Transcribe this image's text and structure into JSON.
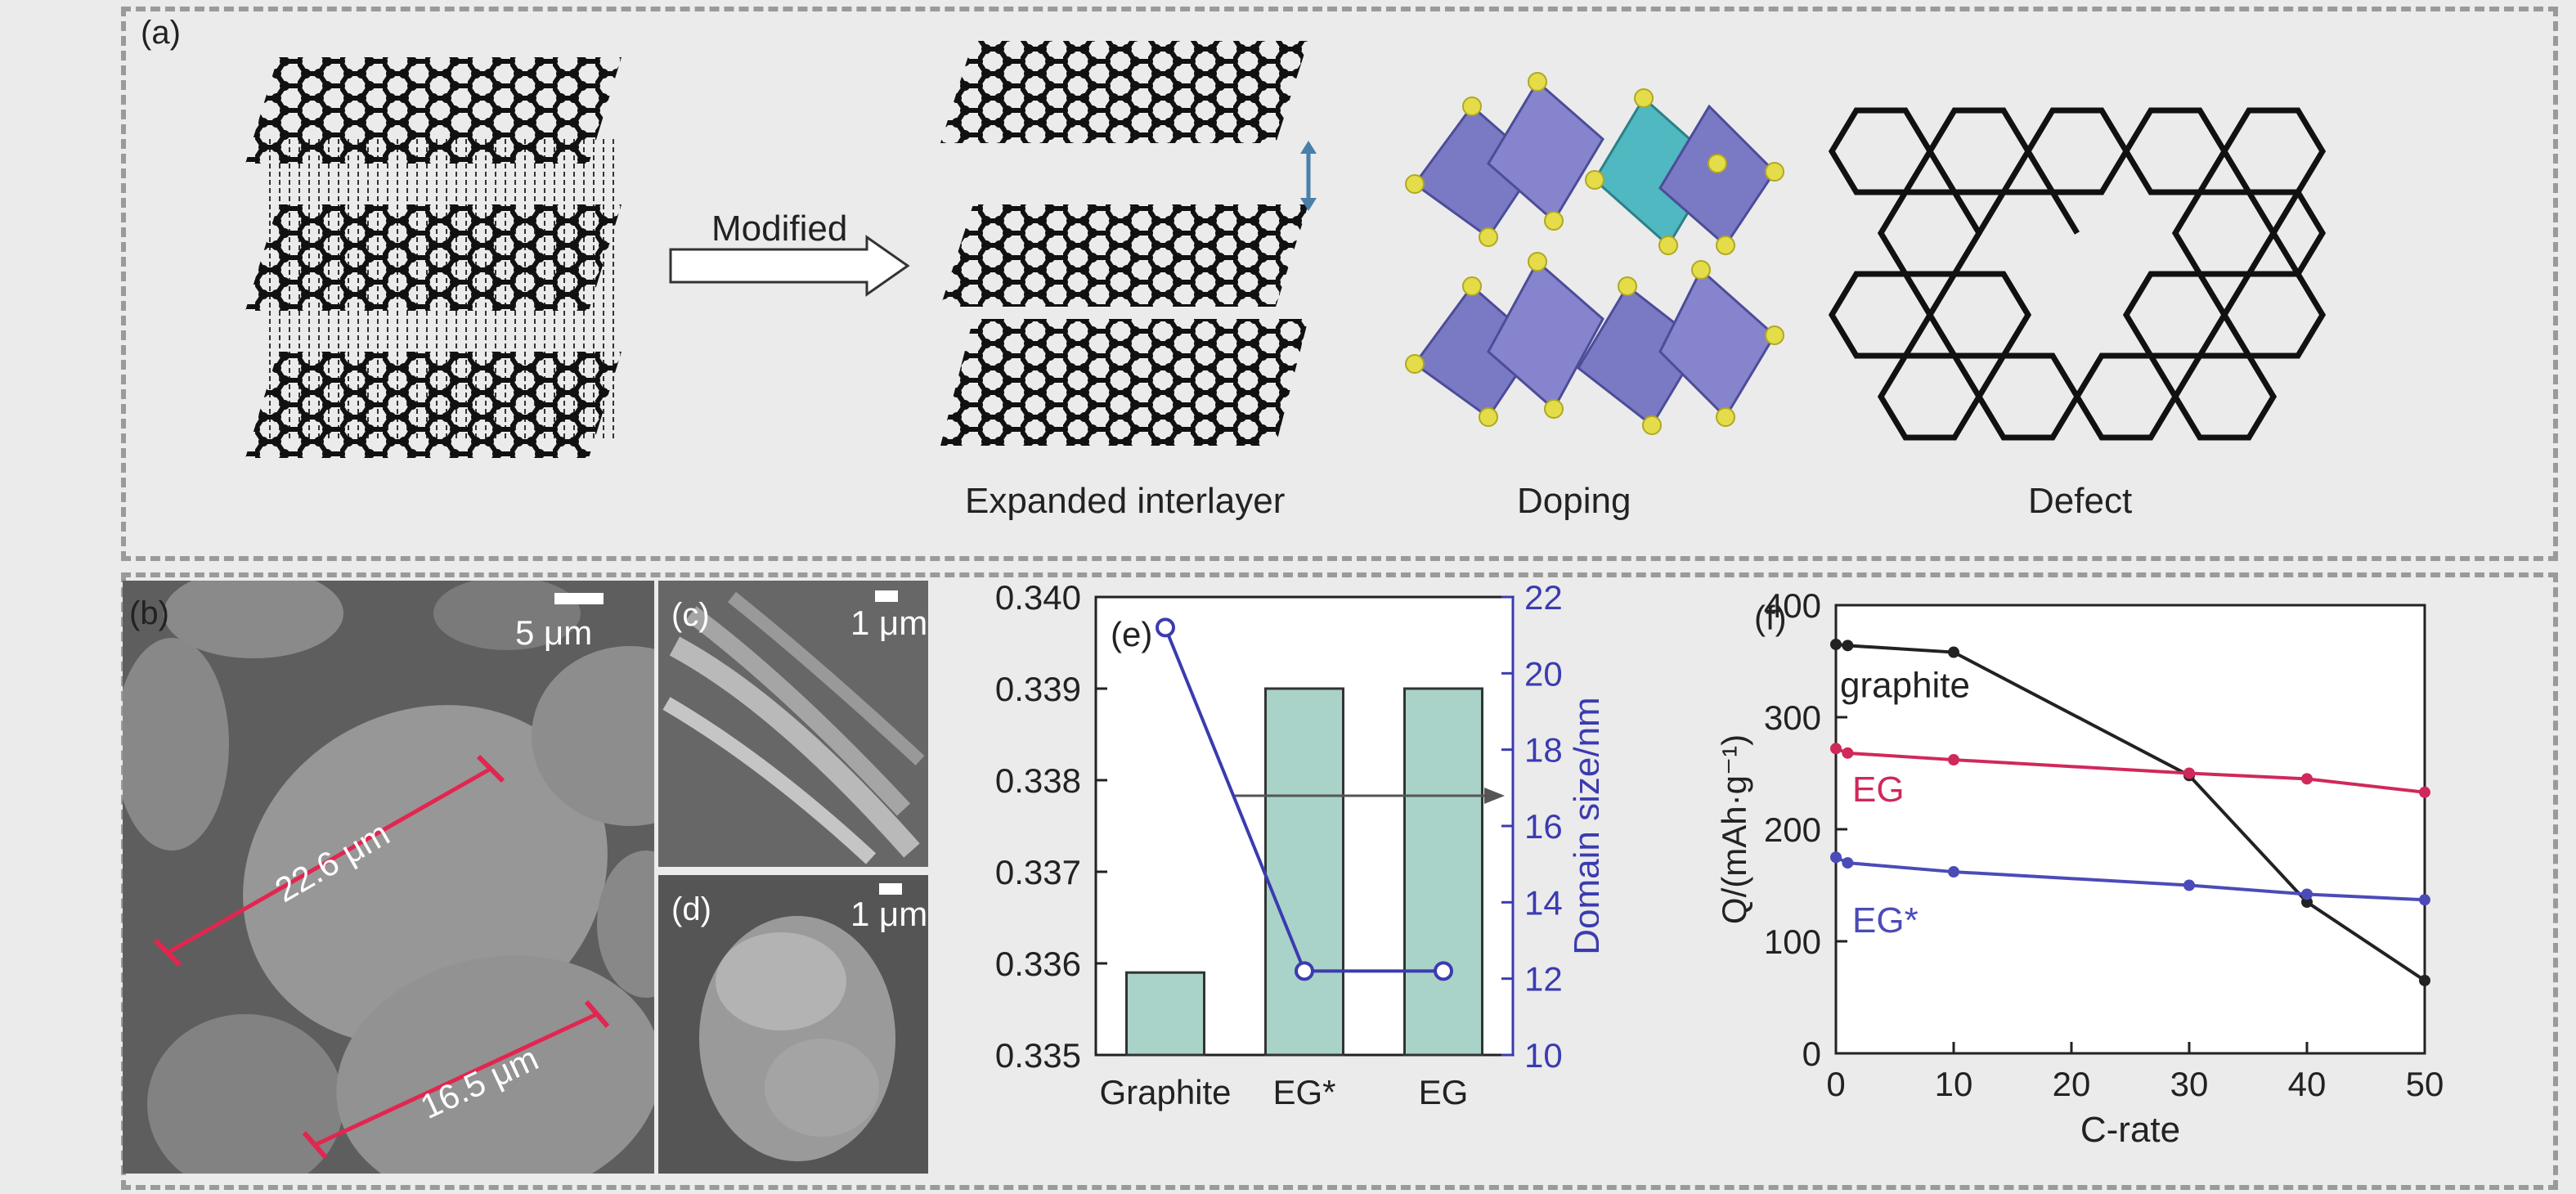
{
  "panel_a": {
    "label": "(a)",
    "arrow_label": "Modified",
    "captions": [
      "Expanded interlayer",
      "Doping",
      "Defect"
    ]
  },
  "panel_b": {
    "label": "(b)",
    "scale": "5 μm",
    "measure1": "22.6 μm",
    "measure2": "16.5 μm"
  },
  "panel_c": {
    "label": "(c)",
    "scale": "1 μm"
  },
  "panel_d": {
    "label": "(d)",
    "scale": "1 μm"
  },
  "chart_data": [
    {
      "panel": "(e)",
      "type": "bar",
      "categories": [
        "Graphite",
        "EG*",
        "EG"
      ],
      "series": [
        {
          "values": [
            0.3359,
            0.339,
            0.339
          ],
          "color": "#a9d3c8"
        },
        {
          "values": [
            21.2,
            12.2,
            12.2
          ],
          "color": "#3b3bb0",
          "axis": "right"
        }
      ],
      "ylim": [
        0.335,
        0.34
      ],
      "yticks": [
        "0.335",
        "0.336",
        "0.337",
        "0.338",
        "0.339",
        "0.340"
      ],
      "ylim_right": [
        10,
        22
      ],
      "yticks_right": [
        "10",
        "12",
        "14",
        "16",
        "18",
        "20",
        "22"
      ],
      "ylabel_right": "Domain size/nm",
      "xlabel": "",
      "title": ""
    },
    {
      "panel": "(f)",
      "type": "line",
      "x": [
        0,
        1,
        10,
        30,
        40,
        50
      ],
      "series": [
        {
          "name": "graphite",
          "x": [
            0,
            1,
            10,
            30,
            40,
            50
          ],
          "values": [
            365,
            364,
            358,
            248,
            135,
            65
          ],
          "color": "#222222"
        },
        {
          "name": "EG",
          "x": [
            0,
            1,
            10,
            30,
            40,
            50
          ],
          "values": [
            272,
            268,
            262,
            250,
            245,
            233
          ],
          "color": "#d0285a"
        },
        {
          "name": "EG*",
          "x": [
            0,
            1,
            10,
            30,
            40,
            50
          ],
          "values": [
            175,
            170,
            162,
            150,
            142,
            137
          ],
          "color": "#4b4bb8"
        }
      ],
      "xlabel": "C-rate",
      "ylabel": "Q/(mAh·g⁻¹)",
      "xlim": [
        0,
        50
      ],
      "ylim": [
        0,
        400
      ],
      "xticks": [
        "0",
        "10",
        "20",
        "30",
        "40",
        "50"
      ],
      "yticks": [
        "0",
        "100",
        "200",
        "300",
        "400"
      ],
      "title": ""
    }
  ]
}
